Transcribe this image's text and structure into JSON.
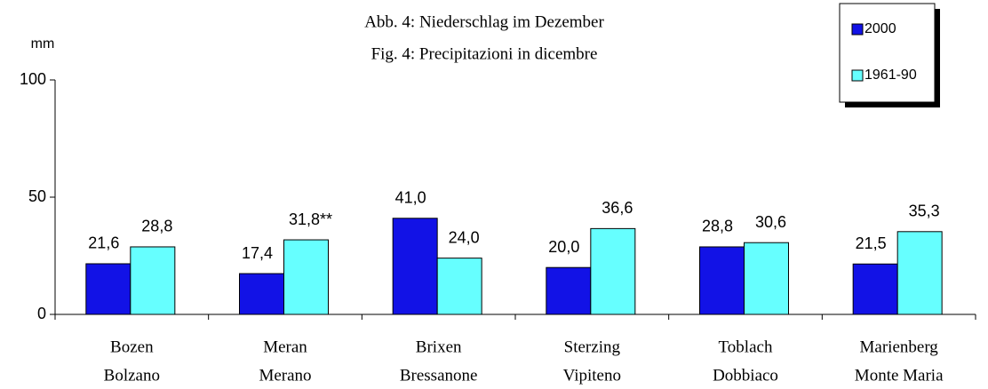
{
  "chart_data": {
    "type": "bar",
    "title": "Abb. 4: Niederschlag im Dezember",
    "subtitle": "Fig. 4: Precipitazioni in dicembre",
    "y_label": "mm",
    "categories": [
      [
        "Bozen",
        "Bolzano"
      ],
      [
        "Meran",
        "Merano"
      ],
      [
        "Brixen",
        "Bressanone"
      ],
      [
        "Sterzing",
        "Vipiteno"
      ],
      [
        "Toblach",
        "Dobbiaco"
      ],
      [
        "Marienberg",
        "Monte Maria"
      ]
    ],
    "series": [
      {
        "name": "2000",
        "color": "#1212e6",
        "values": [
          21.6,
          17.4,
          41.0,
          20.0,
          28.8,
          21.5
        ],
        "value_labels": [
          "21,6",
          "17,4",
          "41,0",
          "20,0",
          "28,8",
          "21,5"
        ]
      },
      {
        "name": "1961-90",
        "color": "#66ffff",
        "values": [
          28.8,
          31.8,
          24.0,
          36.6,
          30.6,
          35.3
        ],
        "value_labels": [
          "28,8",
          "31,8**",
          "24,0",
          "36,6",
          "30,6",
          "35,3"
        ]
      }
    ],
    "ylim": [
      0,
      100
    ],
    "yticks": [
      0,
      50,
      100
    ],
    "grid": false,
    "legend": "top-right"
  }
}
